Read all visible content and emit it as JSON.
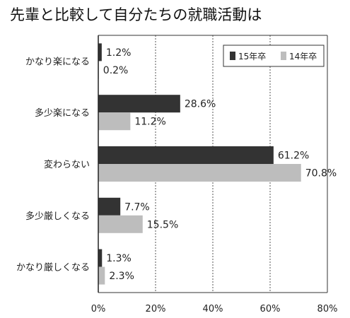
{
  "chart_data": {
    "type": "bar",
    "orientation": "horizontal",
    "title": "先輩と比較して自分たちの就職活動は",
    "categories": [
      "かなり楽になる",
      "多少楽になる",
      "変わらない",
      "多少厳しくなる",
      "かなり厳しくなる"
    ],
    "series": [
      {
        "name": "15年卒",
        "color": "#333333",
        "values": [
          1.2,
          28.6,
          61.2,
          7.7,
          1.3
        ],
        "labels": [
          "1.2%",
          "28.6%",
          "61.2%",
          "7.7%",
          "1.3%"
        ]
      },
      {
        "name": "14年卒",
        "color": "#bdbdbd",
        "values": [
          0.2,
          11.2,
          70.8,
          15.5,
          2.3
        ],
        "labels": [
          "0.2%",
          "11.2%",
          "70.8%",
          "15.5%",
          "2.3%"
        ]
      }
    ],
    "xlim": [
      0,
      80
    ],
    "xticks": [
      0,
      20,
      40,
      60,
      80
    ],
    "xtick_labels": [
      "0%",
      "20%",
      "40%",
      "60%",
      "80%"
    ],
    "grid": "vertical dashed",
    "legend": "top-right"
  }
}
